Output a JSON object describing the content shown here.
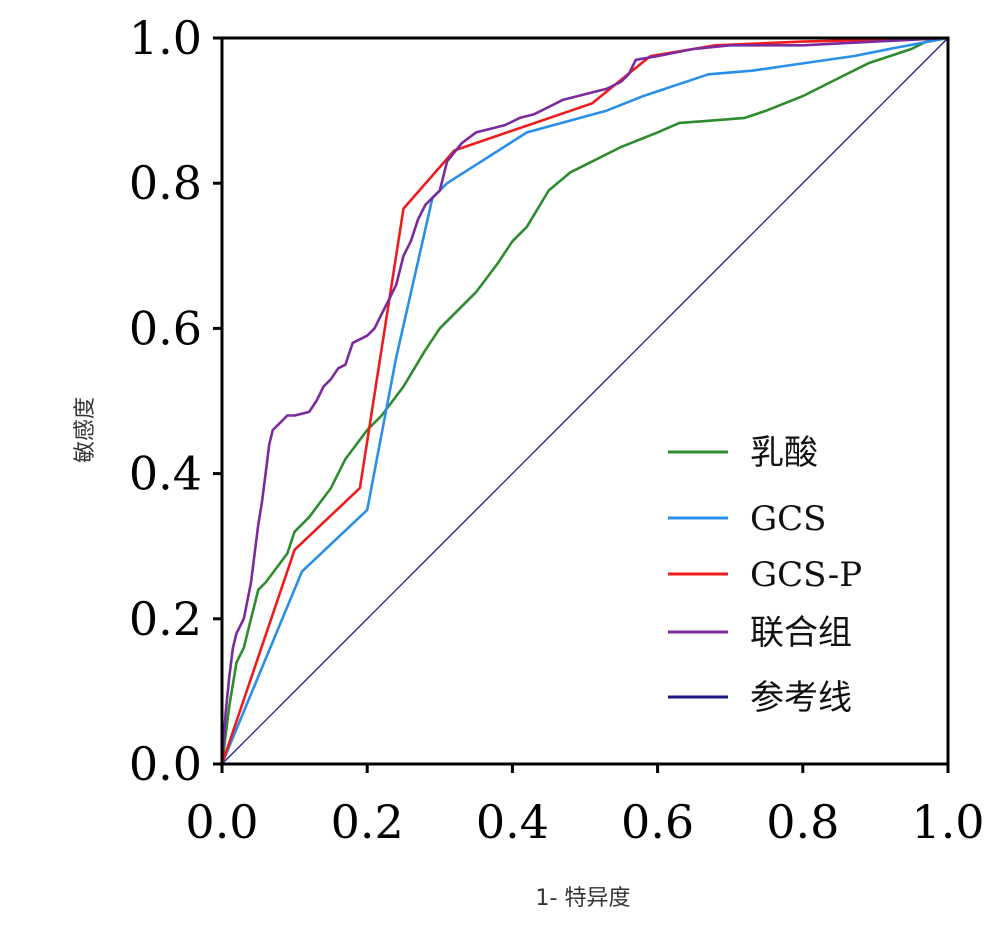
{
  "chart_data": {
    "type": "line",
    "title": "",
    "xlabel": "1- 特异度",
    "ylabel": "敏感度",
    "xlim": [
      0,
      1
    ],
    "ylim": [
      0,
      1
    ],
    "xticks": [
      "0.0",
      "0.2",
      "0.4",
      "0.6",
      "0.8",
      "1.0"
    ],
    "yticks": [
      "0.0",
      "0.2",
      "0.4",
      "0.6",
      "0.8",
      "1.0"
    ],
    "legend_position": "lower-right",
    "series": [
      {
        "name": "乳酸",
        "color": "#2e8b2e",
        "points": [
          [
            0,
            0
          ],
          [
            0.01,
            0.08
          ],
          [
            0.02,
            0.14
          ],
          [
            0.03,
            0.16
          ],
          [
            0.04,
            0.2
          ],
          [
            0.05,
            0.24
          ],
          [
            0.06,
            0.25
          ],
          [
            0.09,
            0.29
          ],
          [
            0.1,
            0.32
          ],
          [
            0.12,
            0.34
          ],
          [
            0.15,
            0.38
          ],
          [
            0.17,
            0.42
          ],
          [
            0.2,
            0.46
          ],
          [
            0.22,
            0.48
          ],
          [
            0.25,
            0.52
          ],
          [
            0.28,
            0.57
          ],
          [
            0.3,
            0.6
          ],
          [
            0.33,
            0.63
          ],
          [
            0.35,
            0.65
          ],
          [
            0.38,
            0.69
          ],
          [
            0.4,
            0.72
          ],
          [
            0.42,
            0.74
          ],
          [
            0.45,
            0.79
          ],
          [
            0.48,
            0.815
          ],
          [
            0.5,
            0.825
          ],
          [
            0.55,
            0.85
          ],
          [
            0.6,
            0.87
          ],
          [
            0.63,
            0.883
          ],
          [
            0.67,
            0.886
          ],
          [
            0.72,
            0.89
          ],
          [
            0.75,
            0.9
          ],
          [
            0.8,
            0.92
          ],
          [
            0.85,
            0.945
          ],
          [
            0.89,
            0.965
          ],
          [
            0.92,
            0.975
          ],
          [
            0.95,
            0.985
          ],
          [
            0.97,
            0.995
          ],
          [
            1,
            1
          ]
        ]
      },
      {
        "name": "GCS",
        "color": "#2a8fe8",
        "points": [
          [
            0,
            0
          ],
          [
            0.11,
            0.265
          ],
          [
            0.2,
            0.35
          ],
          [
            0.24,
            0.56
          ],
          [
            0.29,
            0.78
          ],
          [
            0.31,
            0.8
          ],
          [
            0.42,
            0.87
          ],
          [
            0.53,
            0.9
          ],
          [
            0.58,
            0.92
          ],
          [
            0.67,
            0.95
          ],
          [
            0.73,
            0.955
          ],
          [
            0.8,
            0.965
          ],
          [
            0.87,
            0.975
          ],
          [
            0.92,
            0.985
          ],
          [
            1,
            1
          ]
        ]
      },
      {
        "name": "GCS-P",
        "color": "#ee1c1c",
        "points": [
          [
            0,
            0
          ],
          [
            0.1,
            0.295
          ],
          [
            0.19,
            0.38
          ],
          [
            0.25,
            0.765
          ],
          [
            0.32,
            0.845
          ],
          [
            0.51,
            0.91
          ],
          [
            0.59,
            0.975
          ],
          [
            0.68,
            0.99
          ],
          [
            0.8,
            0.995
          ],
          [
            1,
            1
          ]
        ]
      },
      {
        "name": "联合组",
        "color": "#7b2b9e",
        "points": [
          [
            0,
            0
          ],
          [
            0.005,
            0.07
          ],
          [
            0.01,
            0.12
          ],
          [
            0.015,
            0.16
          ],
          [
            0.02,
            0.18
          ],
          [
            0.03,
            0.2
          ],
          [
            0.04,
            0.25
          ],
          [
            0.05,
            0.33
          ],
          [
            0.055,
            0.36
          ],
          [
            0.06,
            0.4
          ],
          [
            0.065,
            0.44
          ],
          [
            0.07,
            0.46
          ],
          [
            0.08,
            0.47
          ],
          [
            0.09,
            0.48
          ],
          [
            0.1,
            0.48
          ],
          [
            0.12,
            0.485
          ],
          [
            0.13,
            0.5
          ],
          [
            0.14,
            0.52
          ],
          [
            0.15,
            0.53
          ],
          [
            0.16,
            0.545
          ],
          [
            0.17,
            0.55
          ],
          [
            0.18,
            0.58
          ],
          [
            0.2,
            0.59
          ],
          [
            0.21,
            0.6
          ],
          [
            0.22,
            0.62
          ],
          [
            0.23,
            0.64
          ],
          [
            0.24,
            0.66
          ],
          [
            0.25,
            0.7
          ],
          [
            0.26,
            0.72
          ],
          [
            0.27,
            0.75
          ],
          [
            0.28,
            0.77
          ],
          [
            0.29,
            0.78
          ],
          [
            0.3,
            0.79
          ],
          [
            0.31,
            0.83
          ],
          [
            0.33,
            0.855
          ],
          [
            0.35,
            0.87
          ],
          [
            0.37,
            0.875
          ],
          [
            0.39,
            0.88
          ],
          [
            0.41,
            0.89
          ],
          [
            0.43,
            0.895
          ],
          [
            0.45,
            0.905
          ],
          [
            0.47,
            0.915
          ],
          [
            0.49,
            0.92
          ],
          [
            0.51,
            0.925
          ],
          [
            0.53,
            0.93
          ],
          [
            0.55,
            0.94
          ],
          [
            0.56,
            0.95
          ],
          [
            0.57,
            0.97
          ],
          [
            0.6,
            0.975
          ],
          [
            0.65,
            0.985
          ],
          [
            0.7,
            0.99
          ],
          [
            0.8,
            0.99
          ],
          [
            0.9,
            0.995
          ],
          [
            1,
            1
          ]
        ]
      },
      {
        "name": "参考线",
        "color": "#1a1a80",
        "points": [
          [
            0,
            0
          ],
          [
            1,
            1
          ]
        ]
      }
    ]
  }
}
